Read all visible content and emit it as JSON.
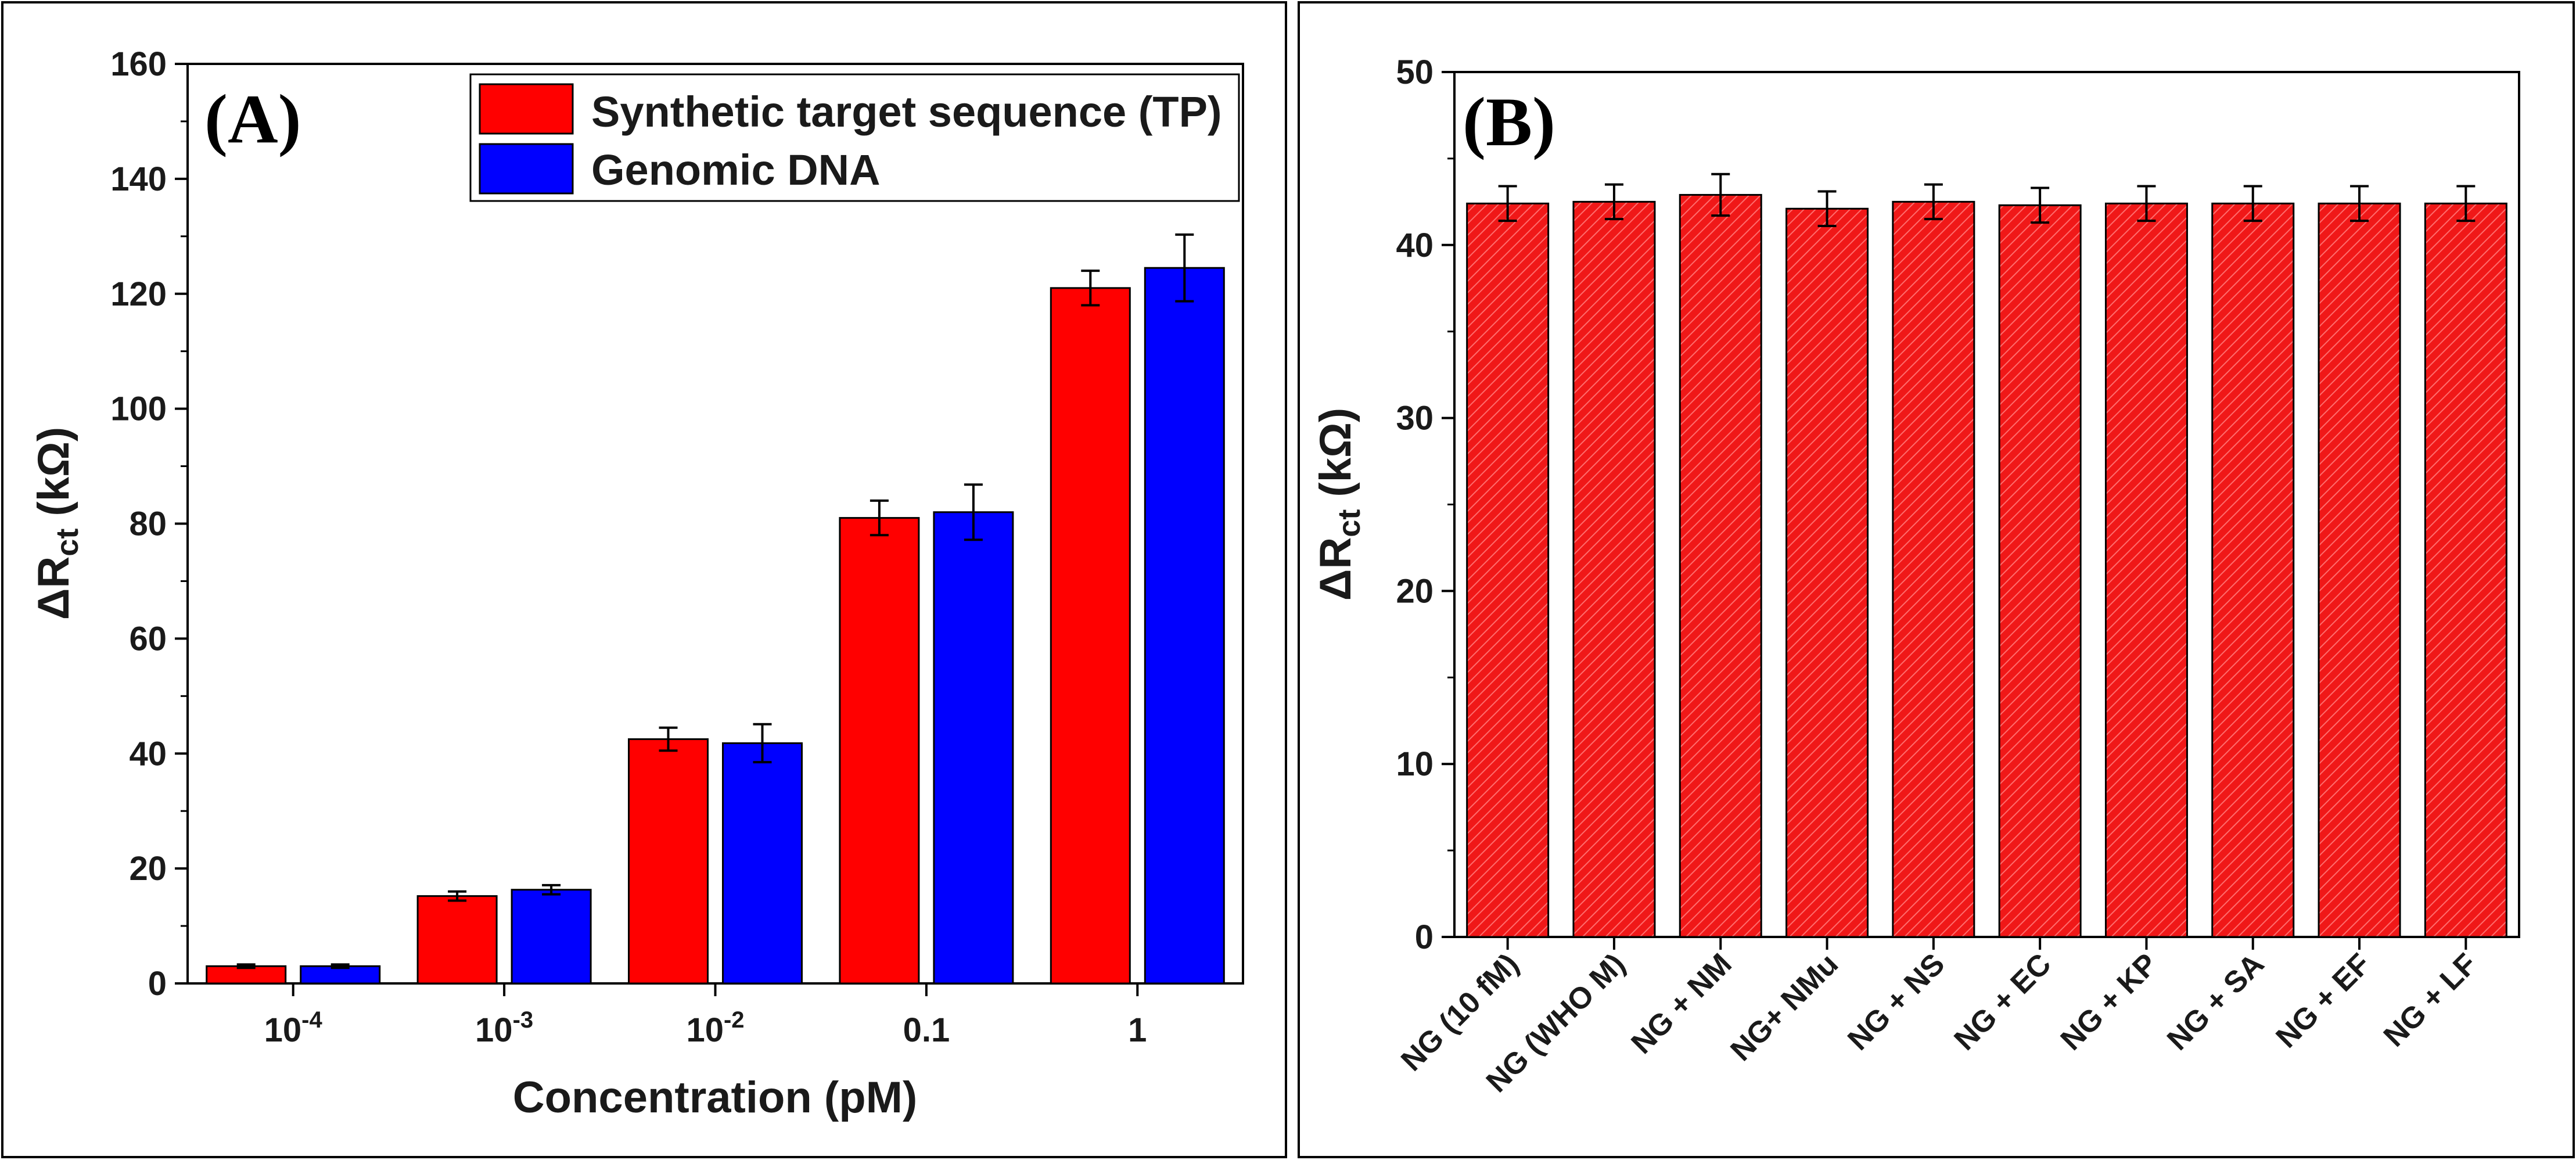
{
  "chart_data": [
    {
      "type": "bar",
      "panel_label": "(A)",
      "xlabel": "Concentration (pM)",
      "ylabel": {
        "prefix": "ΔR",
        "subscript": "ct",
        "suffix": " (kΩ)"
      },
      "ylim": [
        0,
        160
      ],
      "yticks": [
        "0",
        "20",
        "40",
        "60",
        "80",
        "100",
        "120",
        "140",
        "160"
      ],
      "categories": [
        {
          "base": "10",
          "exp": "-4"
        },
        {
          "base": "10",
          "exp": "-3"
        },
        {
          "base": "10",
          "exp": "-2"
        },
        {
          "base": "0.1",
          "exp": ""
        },
        {
          "base": "1",
          "exp": ""
        }
      ],
      "series": [
        {
          "name": "Synthetic target sequence (TP)",
          "color": "#ff0000",
          "values": [
            3,
            15.2,
            42.5,
            81,
            121
          ],
          "errors": [
            0.3,
            0.8,
            2.0,
            3.0,
            3.0
          ]
        },
        {
          "name": "Genomic DNA",
          "color": "#0000ff",
          "values": [
            3,
            16.3,
            41.8,
            82,
            124.5
          ],
          "errors": [
            0.3,
            0.8,
            3.3,
            4.8,
            5.8
          ]
        }
      ],
      "legend_position": "top-right",
      "grid": false
    },
    {
      "type": "bar",
      "panel_label": "(B)",
      "xlabel": "",
      "ylabel": {
        "prefix": "ΔR",
        "subscript": "ct",
        "suffix": " (kΩ)"
      },
      "ylim": [
        0,
        50
      ],
      "yticks": [
        "0",
        "10",
        "20",
        "30",
        "40",
        "50"
      ],
      "categories": [
        "NG (10 fM)",
        "NG (WHO M)",
        "NG + NM",
        "NG+ NMu",
        "NG + NS",
        "NG + EC",
        "NG + KP",
        "NG + SA",
        "NG + EF",
        "NG + LF"
      ],
      "series": [
        {
          "name": "",
          "color": "#ff0000",
          "values": [
            42.4,
            42.5,
            42.9,
            42.1,
            42.5,
            42.3,
            42.4,
            42.4,
            42.4,
            42.4
          ],
          "errors": [
            1.0,
            1.0,
            1.2,
            1.0,
            1.0,
            1.0,
            1.0,
            1.0,
            1.0,
            1.0
          ]
        }
      ],
      "pattern": "diagonal-hatch",
      "grid": false
    }
  ]
}
